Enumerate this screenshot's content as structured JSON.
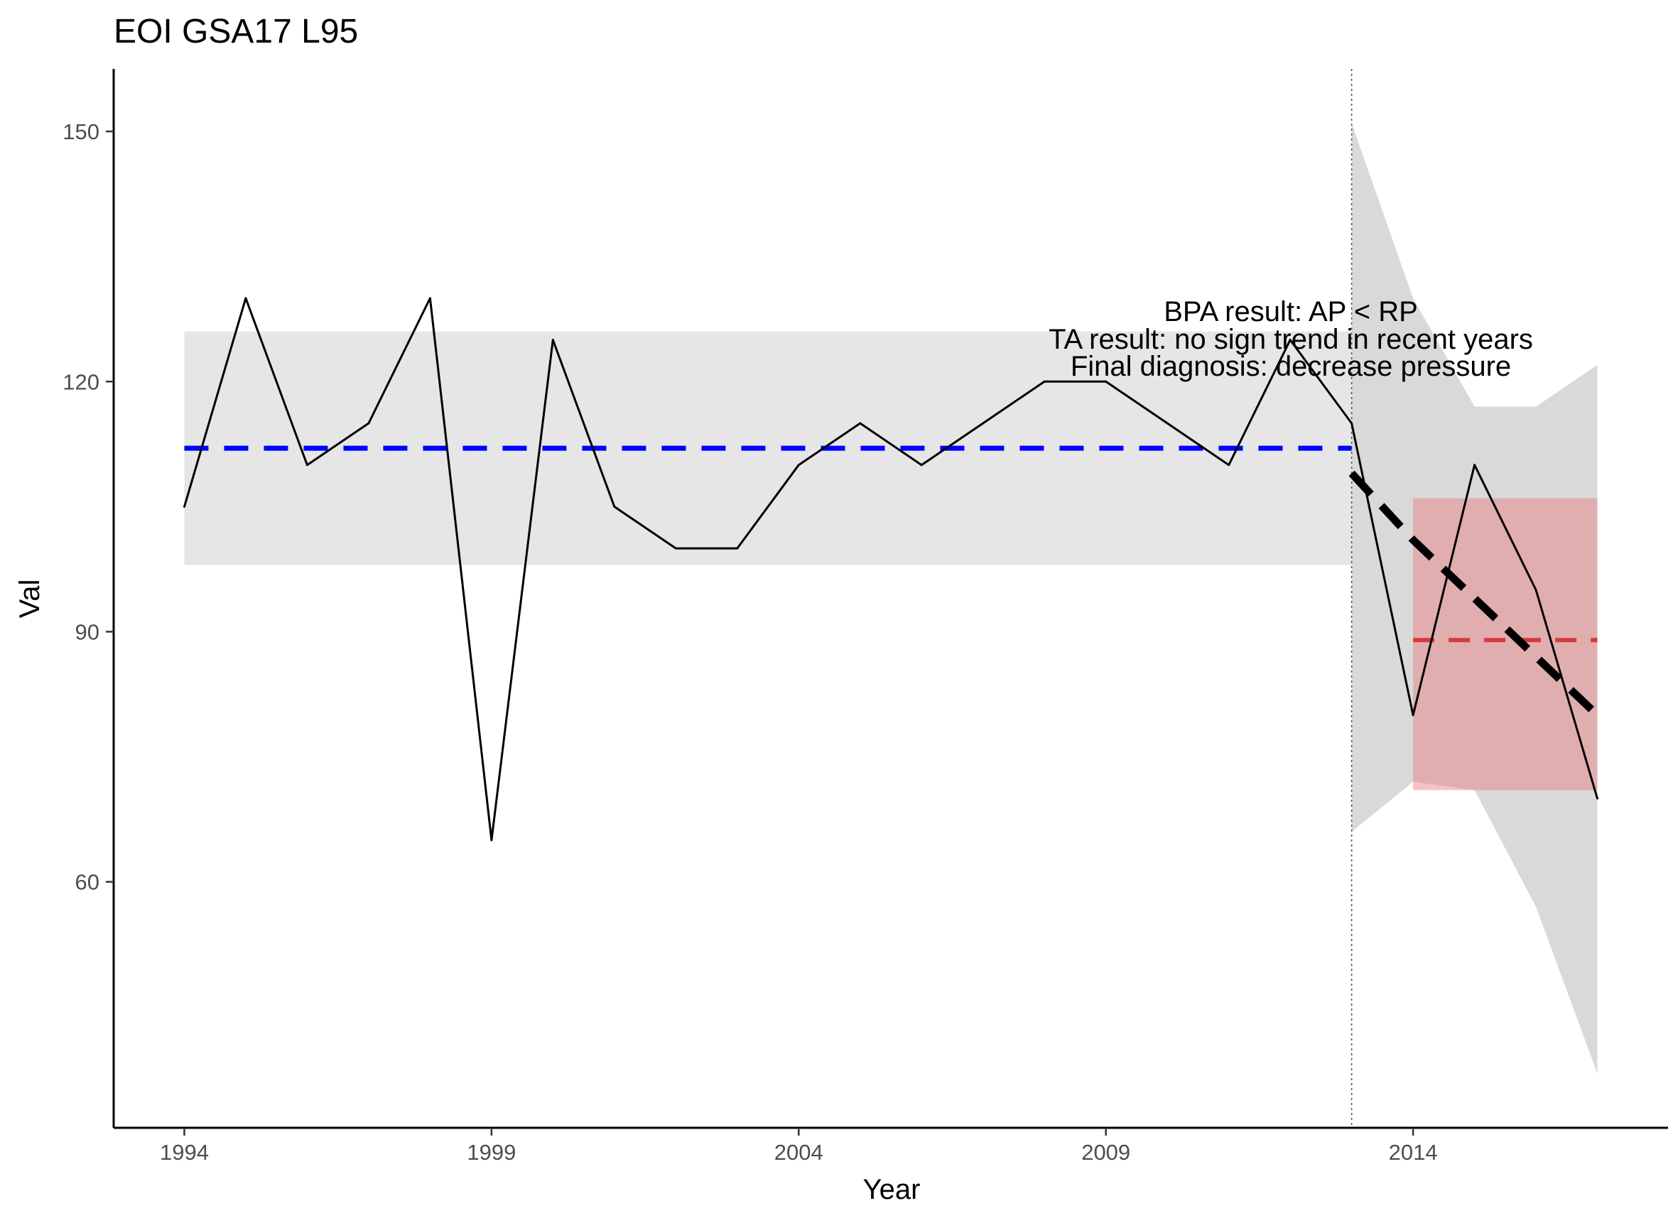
{
  "chart_data": {
    "type": "line",
    "title": "EOI GSA17 L95",
    "xlabel": "Year",
    "ylabel": "Val",
    "xlim": [
      1992.85,
      2018.15
    ],
    "ylim": [
      30.5,
      157.5
    ],
    "x_ticks": [
      1994,
      1999,
      2004,
      2009,
      2014
    ],
    "y_ticks": [
      60,
      90,
      120,
      150
    ],
    "grid": false,
    "legend": "none",
    "series": [
      {
        "x": [
          1994,
          1995,
          1996,
          1997,
          1998,
          1999,
          2000,
          2001,
          2002,
          2003,
          2004,
          2005,
          2006,
          2007,
          2008,
          2009,
          2010,
          2011,
          2012,
          2013,
          2014,
          2015,
          2016,
          2017
        ],
        "values": [
          105,
          130,
          110,
          115,
          130,
          65,
          125,
          105,
          100,
          100,
          110,
          115,
          110,
          115,
          120,
          120,
          115,
          110,
          125,
          115,
          80,
          110,
          95,
          70
        ],
        "color": "#000000"
      }
    ],
    "reference_period": {
      "x_range": [
        1994,
        2013
      ],
      "band": [
        98,
        126
      ],
      "mean": 112,
      "band_color": "#e6e6e6",
      "mean_color": "#0000ff"
    },
    "assessment_period": {
      "x_range": [
        2014,
        2017
      ],
      "band": [
        71,
        106
      ],
      "mean": 89,
      "band_color": "#d5a6a8",
      "mean_color": "#d63a3a"
    },
    "trend": {
      "x": [
        2013,
        2014,
        2015,
        2016,
        2017
      ],
      "fit": [
        109,
        101,
        94,
        87,
        80
      ],
      "upper": [
        151,
        130,
        117,
        117,
        122
      ],
      "lower": [
        66,
        72,
        71,
        57,
        37
      ],
      "color": "#000000",
      "ribbon_color": "#d9d9d9"
    },
    "vline_x": 2013,
    "annotations": [
      "BPA result: AP < RP",
      "TA result: no sign trend in recent years",
      "Final diagnosis: decrease pressure"
    ]
  }
}
